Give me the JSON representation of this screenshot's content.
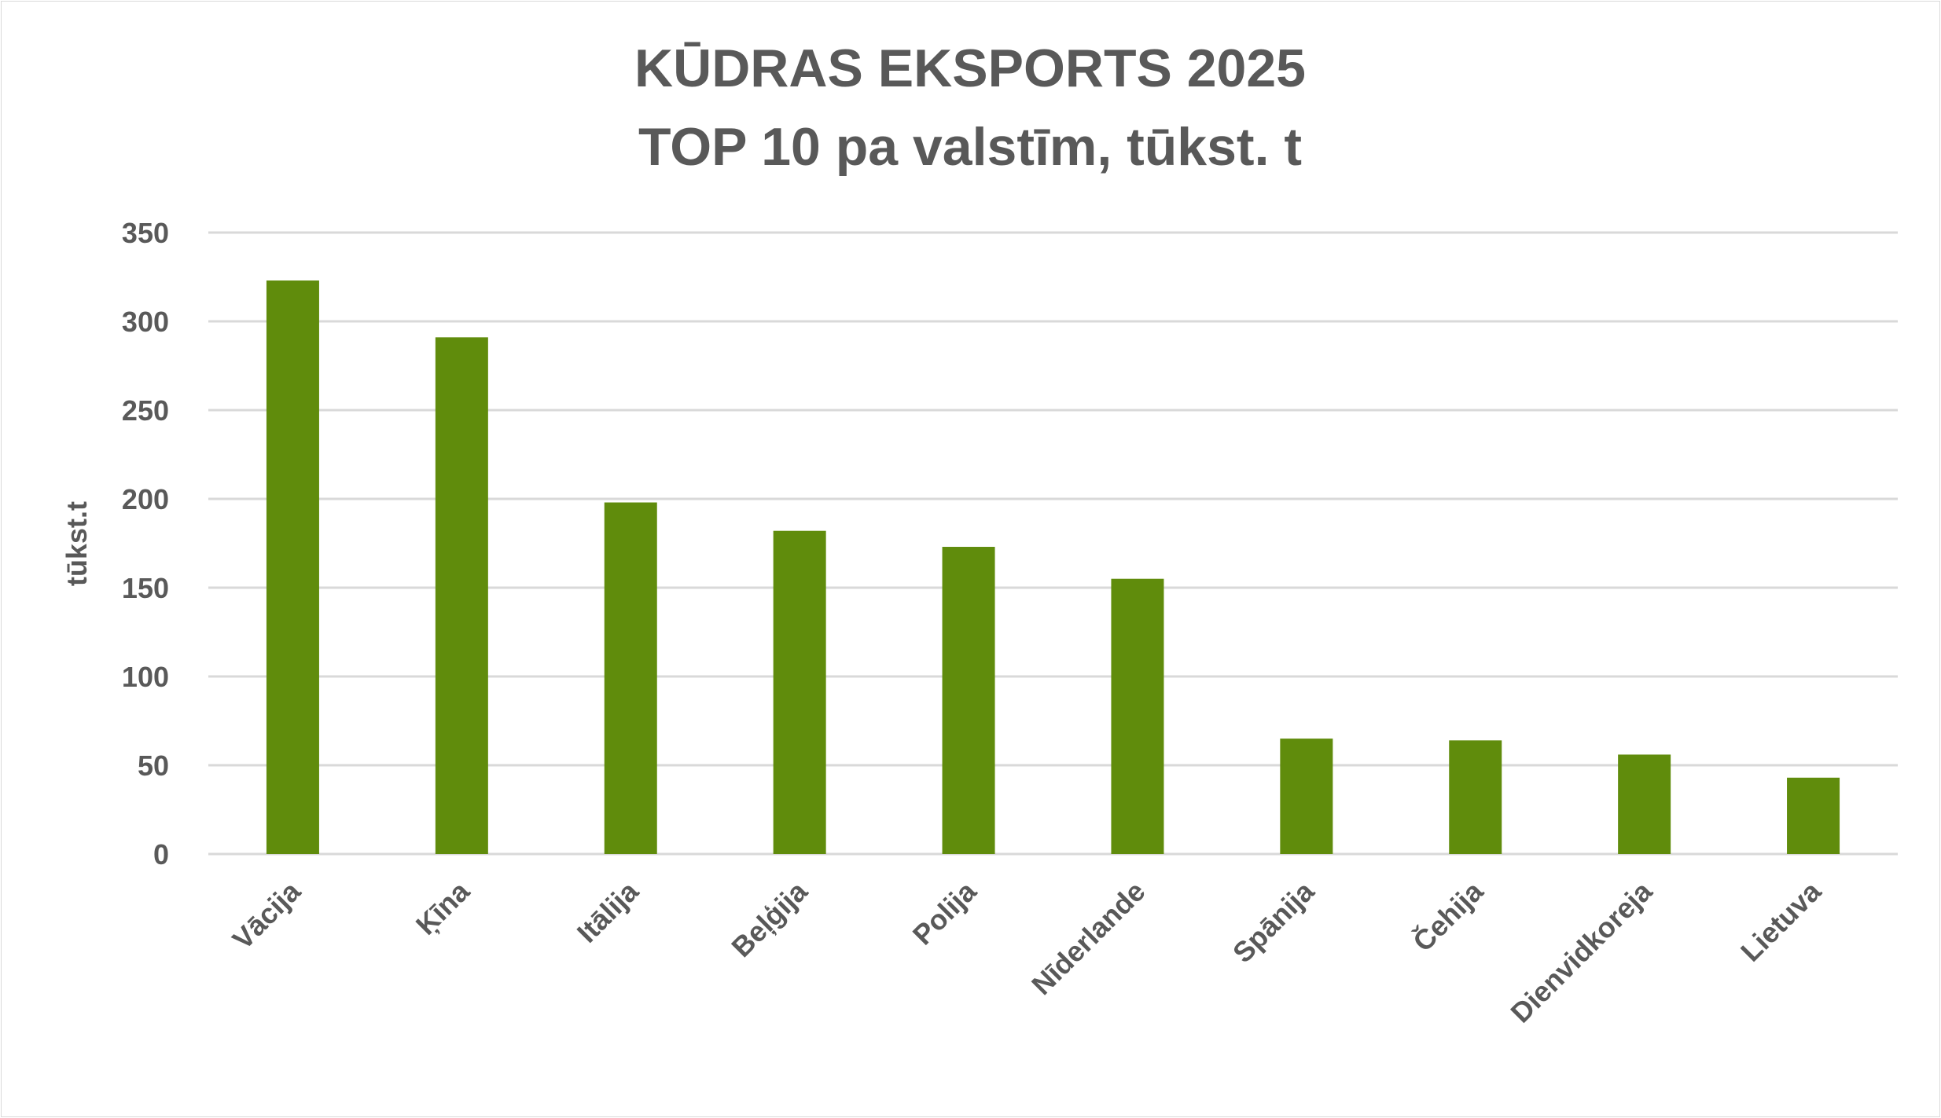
{
  "chart_data": {
    "type": "bar",
    "title": "KŪDRAS EKSPORTS 2025",
    "subtitle": "TOP 10 pa valstīm, tūkst. t",
    "xlabel": "",
    "ylabel": "tūkst.t",
    "categories": [
      "Vācija",
      "Ķīna",
      "Itālija",
      "Beļģija",
      "Polija",
      "Nīderlande",
      "Spānija",
      "Čehija",
      "Dienvidkoreja",
      "Lietuva"
    ],
    "values": [
      323,
      291,
      198,
      182,
      173,
      155,
      65,
      64,
      56,
      43
    ],
    "ylim": [
      0,
      350
    ],
    "yticks": [
      0,
      50,
      100,
      150,
      200,
      250,
      300,
      350
    ],
    "grid": true,
    "legend": "none",
    "colors": {
      "bar": "#608c0c",
      "grid": "#d9d9d9",
      "text": "#595959"
    }
  }
}
